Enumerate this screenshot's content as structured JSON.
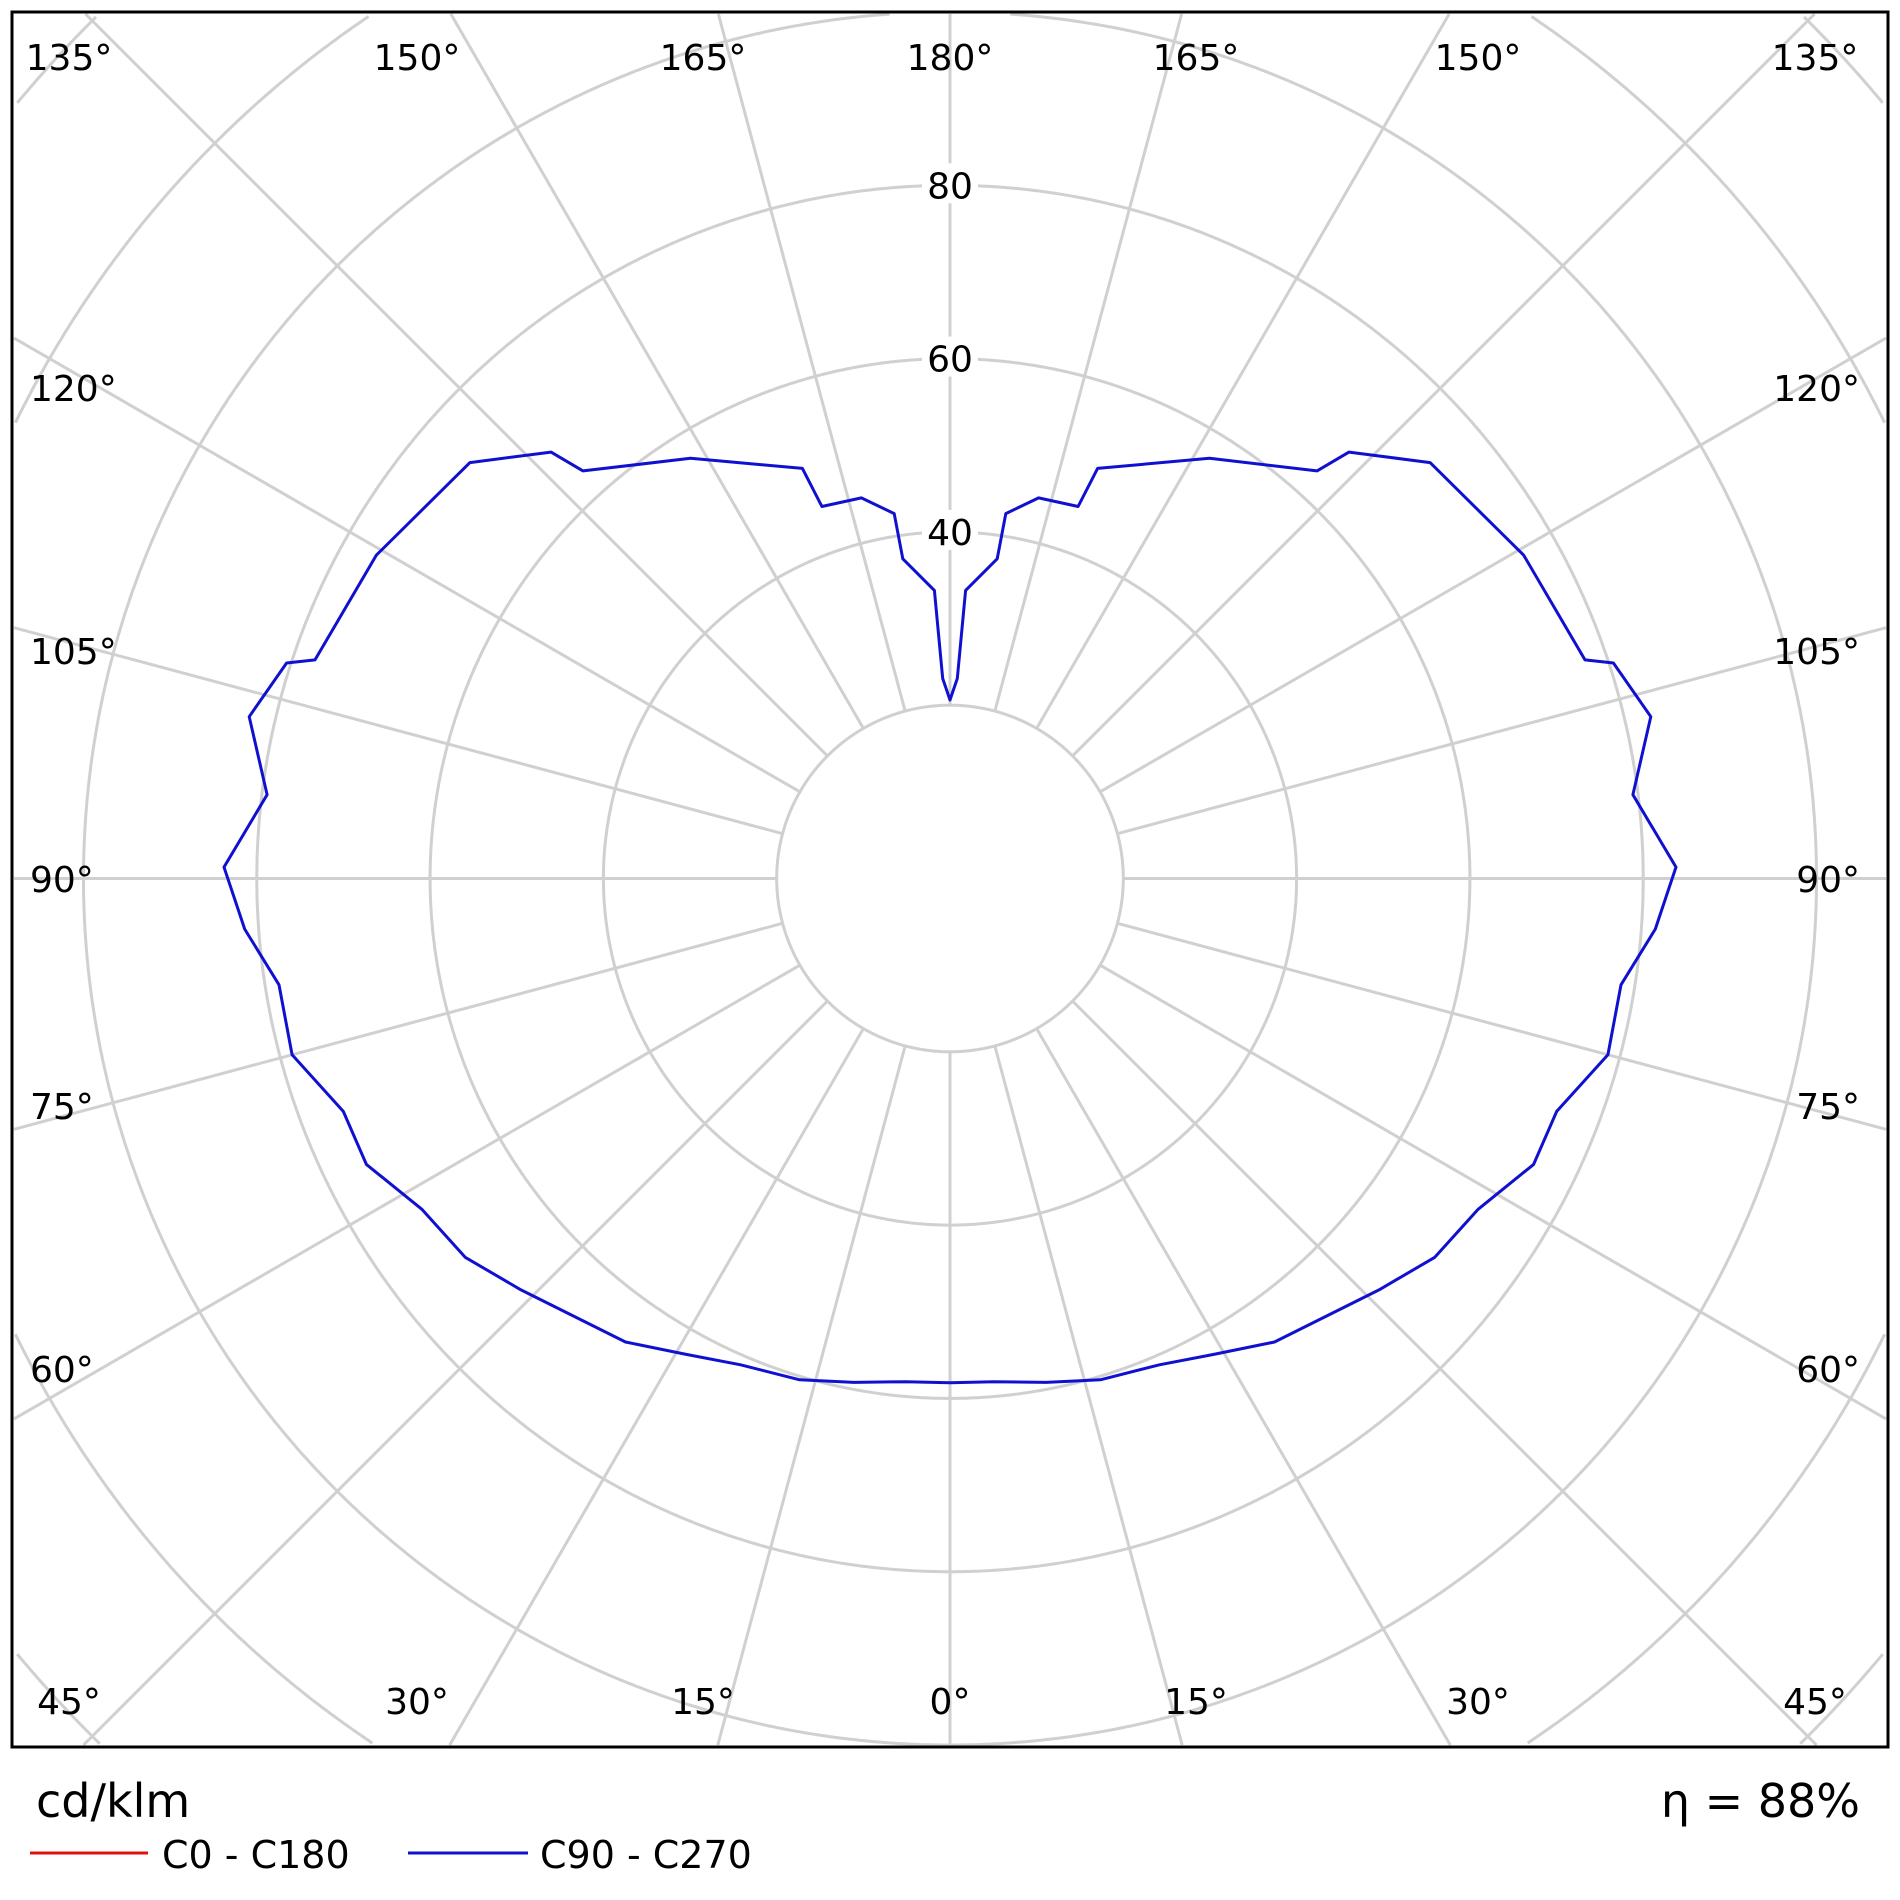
{
  "chart_data": {
    "type": "polar-line",
    "title": "",
    "unit_label": "cd/klm",
    "efficiency_label": "η = 88%",
    "radial_range": [
      0,
      120
    ],
    "radial_grid_step": 20,
    "radial_tick_labels": [
      "40",
      "60",
      "80"
    ],
    "radial_tick_values": [
      40,
      60,
      80
    ],
    "angular_grid_step_deg": 15,
    "grid": true,
    "grid_color": "#d0d0d0",
    "angle_labels_top": [
      "135°",
      "150°",
      "165°",
      "180°",
      "165°",
      "150°",
      "135°"
    ],
    "angle_labels_bottom": [
      "45°",
      "30°",
      "15°",
      "0°",
      "15°",
      "30°",
      "45°"
    ],
    "angle_labels_left": [
      "120°",
      "105°",
      "90°",
      "75°",
      "60°"
    ],
    "angle_labels_right": [
      "120°",
      "105°",
      "90°",
      "75°",
      "60°"
    ],
    "legend_placement": "bottom-left",
    "series": [
      {
        "name": "C0 - C180",
        "color": "#e01010",
        "gamma": [],
        "values": []
      },
      {
        "name": "C90 - C270",
        "color": "#1010d0",
        "symmetric": true,
        "gamma": [
          0,
          5,
          10.8,
          16.7,
          23.3,
          29,
          35,
          46.2,
          52,
          57.9,
          63.9,
          69,
          75,
          81,
          85.9,
          90.9,
          97,
          103,
          108,
          109,
          119.4,
          130.9,
          136.9,
          138,
          148.3,
          160.2,
          161,
          166.9,
          171.3,
          171.6,
          176.9,
          177.9,
          180
        ],
        "values": [
          58.2,
          58.3,
          59.2,
          60.4,
          61.1,
          62.8,
          65.3,
          68.6,
          71,
          71.9,
          75,
          75,
          78.6,
          78.4,
          81.6,
          83.8,
          79.4,
          83,
          80.5,
          77.5,
          76,
          73.3,
          67.4,
          63.3,
          57,
          50.3,
          45.4,
          45.1,
          42.6,
          37.3,
          33.3,
          23.1,
          20.6
        ]
      }
    ]
  }
}
